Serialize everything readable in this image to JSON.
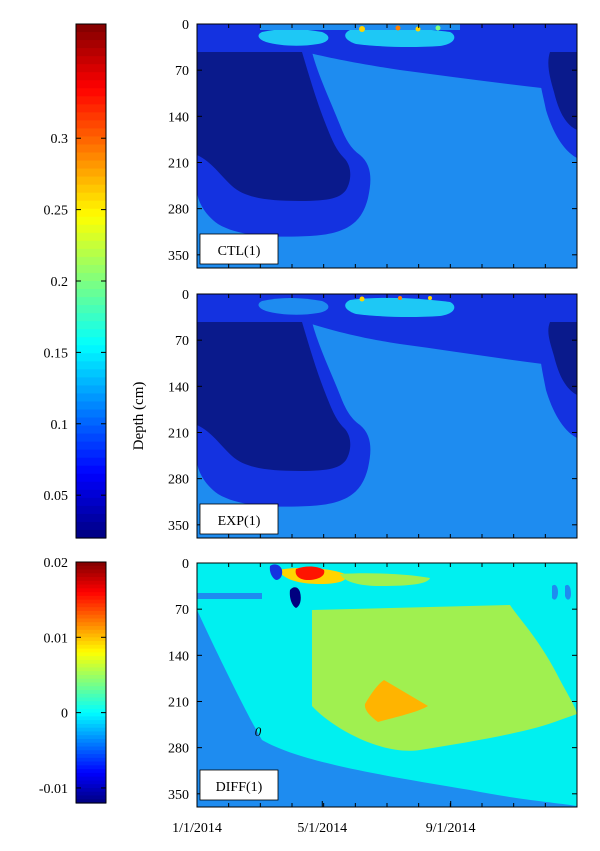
{
  "chart_data": [
    {
      "type": "heatmap",
      "label": "CTL(1)",
      "ylabel": "",
      "y_ticks": [
        "0",
        "70",
        "140",
        "210",
        "280",
        "350"
      ],
      "ylim": [
        0,
        370
      ],
      "ydir": "reversed",
      "xlim": [
        "2014-01-01",
        "2014-12-31"
      ],
      "x_ticks_shown": false,
      "value_range": [
        0.02,
        0.38
      ]
    },
    {
      "type": "heatmap",
      "label": "EXP(1)",
      "ylabel": "Depth (cm)",
      "y_ticks": [
        "0",
        "70",
        "140",
        "210",
        "280",
        "350"
      ],
      "ylim": [
        0,
        370
      ],
      "ydir": "reversed",
      "xlim": [
        "2014-01-01",
        "2014-12-31"
      ],
      "x_ticks_shown": false,
      "value_range": [
        0.02,
        0.38
      ]
    },
    {
      "type": "heatmap",
      "label": "DIFF(1)",
      "ylabel": "",
      "y_ticks": [
        "0",
        "70",
        "140",
        "210",
        "280",
        "350"
      ],
      "ylim": [
        0,
        370
      ],
      "ydir": "reversed",
      "xlim": [
        "2014-01-01",
        "2014-12-31"
      ],
      "x_ticks": [
        "1/1/2014",
        "5/1/2014",
        "9/1/2014"
      ],
      "contour_label": "0",
      "value_range": [
        -0.012,
        0.02
      ]
    }
  ],
  "colorbars": {
    "top": {
      "ticks": [
        "0.3",
        "0.25",
        "0.2",
        "0.15",
        "0.1",
        "0.05"
      ],
      "range": [
        0.02,
        0.38
      ]
    },
    "bottom": {
      "ticks": [
        "0.02",
        "0.01",
        "0",
        "-0.01"
      ],
      "range": [
        -0.012,
        0.02
      ]
    }
  },
  "colors": {
    "jet": [
      "#00007f",
      "#0000ff",
      "#007fff",
      "#00ffff",
      "#7fff7f",
      "#ffff00",
      "#ff7f00",
      "#ff0000",
      "#7f0000"
    ],
    "panel_regions": {
      "deep_navy": "#0a1a8c",
      "blue": "#1432e0",
      "light_blue": "#1e8cf0",
      "cyan": "#1ec8f5",
      "diff_cyan": "#00f0f0",
      "diff_green": "#a0f050",
      "diff_orange": "#ffb400"
    }
  }
}
